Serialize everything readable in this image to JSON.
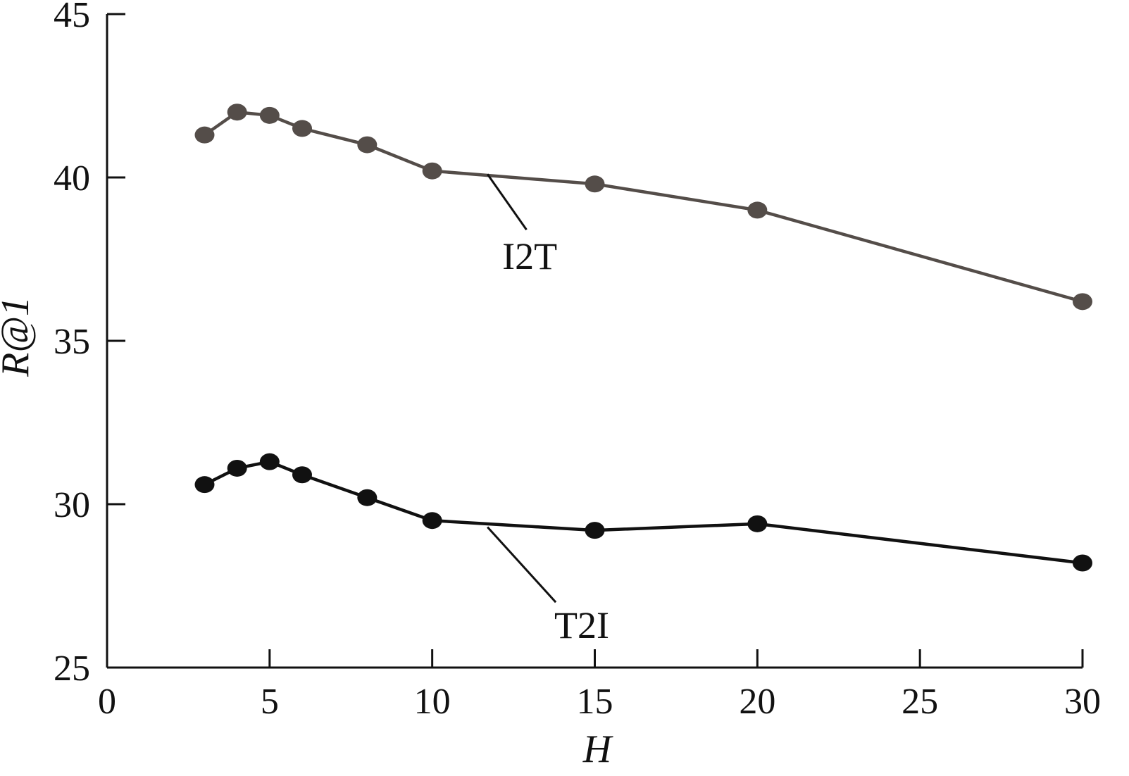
{
  "chart_data": {
    "type": "line",
    "xlabel": "H",
    "ylabel": "R@1",
    "xlim": [
      0,
      30
    ],
    "ylim": [
      25,
      45
    ],
    "xticks": [
      0,
      5,
      10,
      15,
      20,
      25,
      30
    ],
    "yticks": [
      25,
      30,
      35,
      40,
      45
    ],
    "grid": false,
    "legend": "none",
    "series": [
      {
        "name": "I2T",
        "color": "#544d49",
        "x": [
          3,
          4,
          5,
          6,
          8,
          10,
          15,
          20,
          30
        ],
        "y": [
          41.3,
          42.0,
          41.9,
          41.5,
          41.0,
          40.2,
          39.8,
          39.0,
          36.2
        ],
        "label_leader_from": [
          11.7,
          40.1
        ],
        "label_leader_to": [
          12.9,
          38.4
        ],
        "label_at": [
          13.0,
          37.2
        ]
      },
      {
        "name": "T2I",
        "color": "#111111",
        "x": [
          3,
          4,
          5,
          6,
          8,
          10,
          15,
          20,
          30
        ],
        "y": [
          30.6,
          31.1,
          31.3,
          30.9,
          30.2,
          29.5,
          29.2,
          29.4,
          28.2
        ],
        "label_leader_from": [
          11.7,
          29.3
        ],
        "label_leader_to": [
          13.8,
          27.0
        ],
        "label_at": [
          14.6,
          25.9
        ]
      }
    ]
  }
}
